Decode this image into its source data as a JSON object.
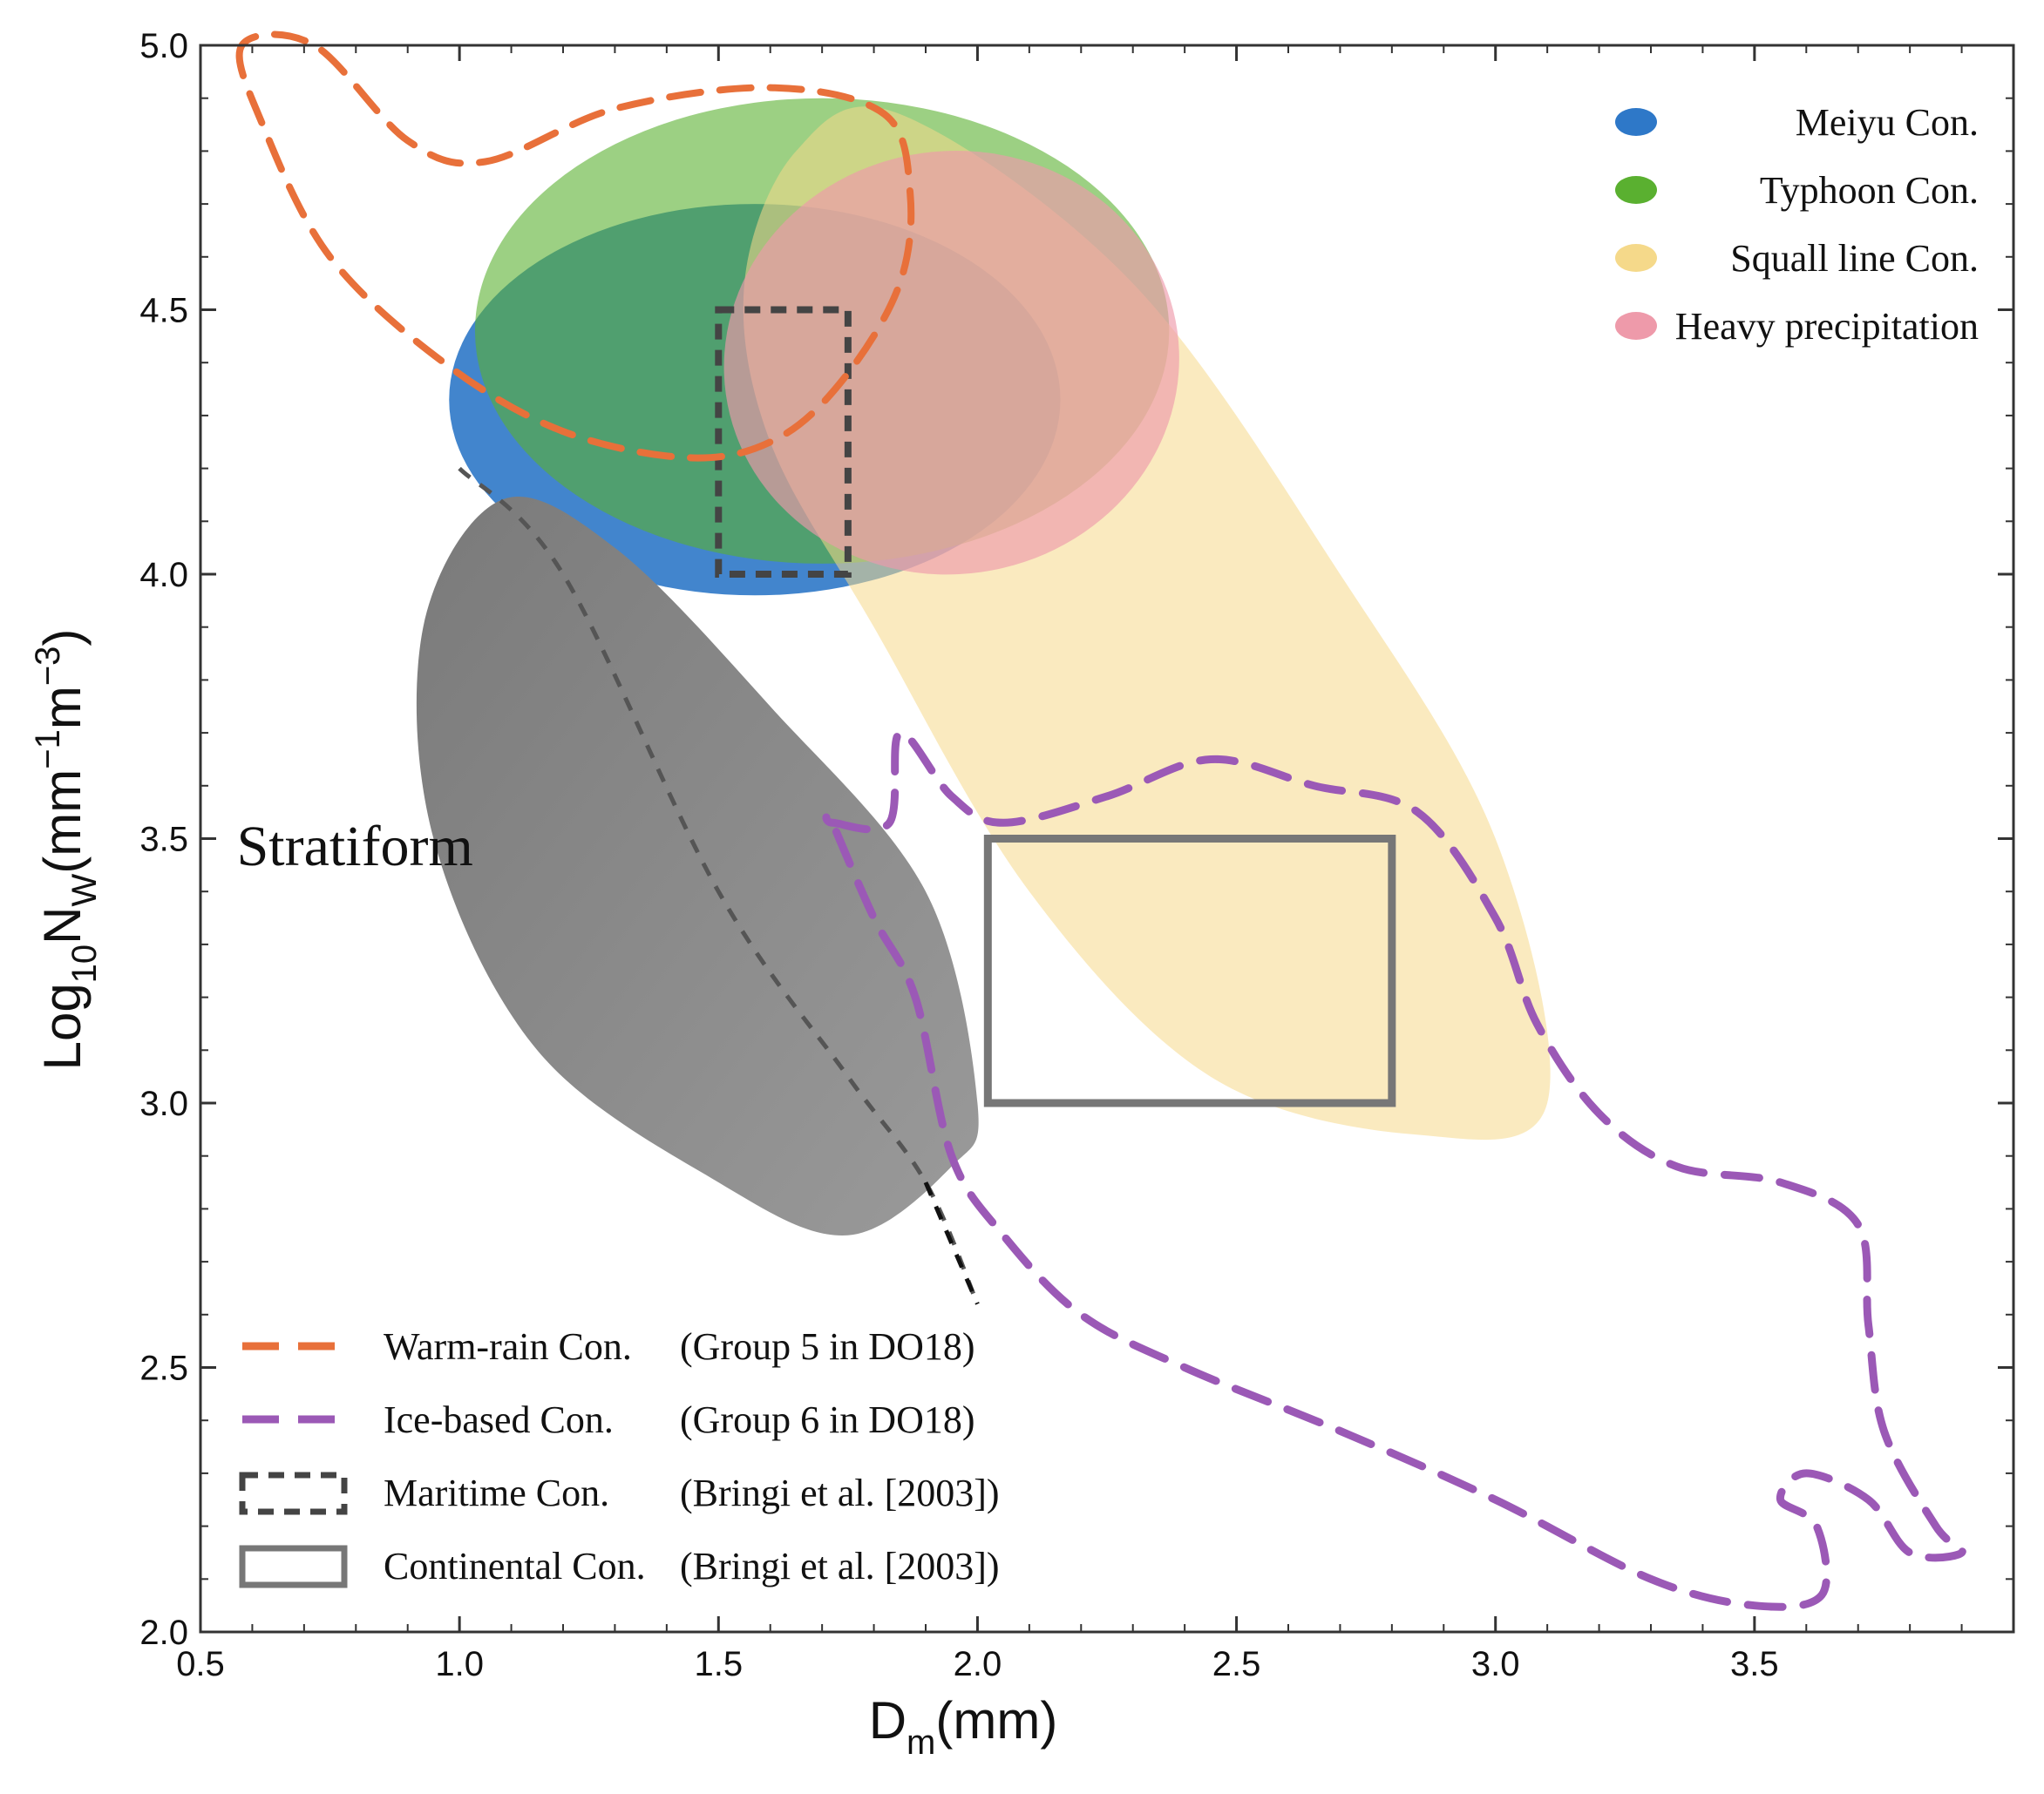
{
  "chart_data": {
    "type": "scatter",
    "xlabel_main": "D",
    "xlabel_sub": "m",
    "xlabel_rest": "(mm)",
    "ylabel_pre": "Log",
    "ylabel_sub1": "10",
    "ylabel_n": "N",
    "ylabel_sub2": "W",
    "ylabel_unit_a": "(mm",
    "ylabel_sup1": "−1",
    "ylabel_unit_b": "m",
    "ylabel_sup2": "−3",
    "ylabel_unit_c": ")",
    "xlim": [
      0.5,
      4.0
    ],
    "ylim": [
      2.0,
      5.0
    ],
    "xticks": [
      0.5,
      1.0,
      1.5,
      2.0,
      2.5,
      3.0,
      3.5
    ],
    "xtick_labels": [
      "0.5",
      "1.0",
      "1.5",
      "2.0",
      "2.5",
      "3.0",
      "3.5"
    ],
    "yticks": [
      2.0,
      2.5,
      3.0,
      3.5,
      4.0,
      4.5,
      5.0
    ],
    "ytick_labels": [
      "2.0",
      "2.5",
      "3.0",
      "3.5",
      "4.0",
      "4.5",
      "5.0"
    ],
    "regions": [
      {
        "name": "Meiyu Con.",
        "color": "#2e78c8",
        "opacity": 0.9,
        "center": [
          1.57,
          4.33
        ],
        "semi_axis_x": 0.59,
        "semi_axis_y": 0.37,
        "rotation_deg": 0
      },
      {
        "name": "Typhoon Con.",
        "color": "#5ab030",
        "opacity": 0.6,
        "center": [
          1.7,
          4.46
        ],
        "semi_axis_x": 0.67,
        "semi_axis_y": 0.44,
        "rotation_deg": 0
      },
      {
        "name": "Squall line Con.",
        "color": "#f5d98a",
        "opacity": 0.55,
        "points": [
          [
            1.55,
            4.55
          ],
          [
            1.65,
            4.8
          ],
          [
            1.85,
            4.87
          ],
          [
            2.3,
            4.55
          ],
          [
            2.7,
            4.0
          ],
          [
            3.0,
            3.5
          ],
          [
            3.1,
            3.0
          ],
          [
            2.85,
            2.94
          ],
          [
            2.45,
            3.05
          ],
          [
            2.1,
            3.4
          ],
          [
            1.8,
            3.9
          ],
          [
            1.6,
            4.25
          ]
        ]
      },
      {
        "name": "Heavy precipitation",
        "color": "#ee9aaa",
        "opacity": 0.65,
        "center": [
          1.95,
          4.4
        ],
        "semi_axis_x": 0.44,
        "semi_axis_y": 0.4,
        "rotation_deg": -8
      },
      {
        "name": "",
        "label": "Stratiform",
        "color": "#8a8a8a",
        "points": [
          [
            1.08,
            4.14
          ],
          [
            1.3,
            4.05
          ],
          [
            1.6,
            3.75
          ],
          [
            1.9,
            3.4
          ],
          [
            2.0,
            3.0
          ],
          [
            1.95,
            2.88
          ],
          [
            1.75,
            2.75
          ],
          [
            1.5,
            2.85
          ],
          [
            1.15,
            3.1
          ],
          [
            0.95,
            3.5
          ],
          [
            0.93,
            3.9
          ]
        ]
      }
    ],
    "dashed_line": [
      [
        1.0,
        4.2
      ],
      [
        1.2,
        4.0
      ],
      [
        1.5,
        3.4
      ],
      [
        1.75,
        3.05
      ],
      [
        1.9,
        2.85
      ],
      [
        2.0,
        2.62
      ]
    ],
    "maritime_box": {
      "label": "Maritime Con.",
      "ref": "(Bringi et al. [2003])",
      "x": [
        1.5,
        1.75
      ],
      "y": [
        4.0,
        4.5
      ],
      "color": "#444444"
    },
    "continental_box": {
      "label": "Continental Con.",
      "ref": "(Bringi et al. [2003])",
      "x": [
        2.02,
        2.8
      ],
      "y": [
        3.0,
        3.5
      ],
      "color": "#777777"
    },
    "warm_rain_contour": {
      "label": "Warm-rain Con.",
      "ref": "(Group 5 in DO18)",
      "color": "#e8703a",
      "points": [
        [
          0.58,
          5.0
        ],
        [
          0.62,
          4.85
        ],
        [
          0.75,
          4.6
        ],
        [
          0.97,
          4.4
        ],
        [
          1.2,
          4.27
        ],
        [
          1.45,
          4.22
        ],
        [
          1.62,
          4.26
        ],
        [
          1.75,
          4.38
        ],
        [
          1.85,
          4.55
        ],
        [
          1.87,
          4.72
        ],
        [
          1.82,
          4.87
        ],
        [
          1.6,
          4.92
        ],
        [
          1.3,
          4.88
        ],
        [
          1.05,
          4.78
        ],
        [
          0.9,
          4.82
        ],
        [
          0.72,
          5.0
        ]
      ]
    },
    "ice_contour": {
      "label": "Ice-based Con.",
      "ref": "(Group 6 in DO18)",
      "color": "#9b59b6",
      "points": [
        [
          1.72,
          3.53
        ],
        [
          1.83,
          3.53
        ],
        [
          1.85,
          3.7
        ],
        [
          1.95,
          3.58
        ],
        [
          2.05,
          3.53
        ],
        [
          2.25,
          3.58
        ],
        [
          2.45,
          3.65
        ],
        [
          2.65,
          3.6
        ],
        [
          2.85,
          3.55
        ],
        [
          3.0,
          3.35
        ],
        [
          3.08,
          3.15
        ],
        [
          3.2,
          2.98
        ],
        [
          3.35,
          2.88
        ],
        [
          3.55,
          2.85
        ],
        [
          3.7,
          2.77
        ],
        [
          3.72,
          2.58
        ],
        [
          3.75,
          2.38
        ],
        [
          3.85,
          2.2
        ],
        [
          3.9,
          2.15
        ],
        [
          3.8,
          2.15
        ],
        [
          3.72,
          2.25
        ],
        [
          3.6,
          2.3
        ],
        [
          3.55,
          2.25
        ],
        [
          3.62,
          2.2
        ],
        [
          3.63,
          2.07
        ],
        [
          3.5,
          2.05
        ],
        [
          3.3,
          2.1
        ],
        [
          3.0,
          2.25
        ],
        [
          2.7,
          2.38
        ],
        [
          2.4,
          2.5
        ],
        [
          2.2,
          2.6
        ],
        [
          2.05,
          2.75
        ],
        [
          1.95,
          2.9
        ],
        [
          1.88,
          3.2
        ],
        [
          1.8,
          3.35
        ],
        [
          1.72,
          3.53
        ]
      ]
    },
    "stratiform_label": "Stratiform",
    "legend_top_right": [
      {
        "label": "Meiyu Con.",
        "color": "#2e78c8"
      },
      {
        "label": "Typhoon Con.",
        "color": "#5ab030"
      },
      {
        "label": "Squall line Con.",
        "color": "#f5d98a"
      },
      {
        "label": "Heavy precipitation",
        "color": "#ee9aaa"
      }
    ],
    "legend_bottom_left": [
      {
        "label": "Warm-rain Con.",
        "ref": "(Group 5 in DO18)",
        "style": "orange-dash"
      },
      {
        "label": "Ice-based  Con.",
        "ref": "(Group 6 in DO18)",
        "style": "purple-dash"
      },
      {
        "label": "Maritime Con.",
        "ref": "(Bringi et al. [2003])",
        "style": "dashed-box"
      },
      {
        "label": "Continental Con.",
        "ref": "(Bringi et al. [2003])",
        "style": "solid-box"
      }
    ]
  }
}
